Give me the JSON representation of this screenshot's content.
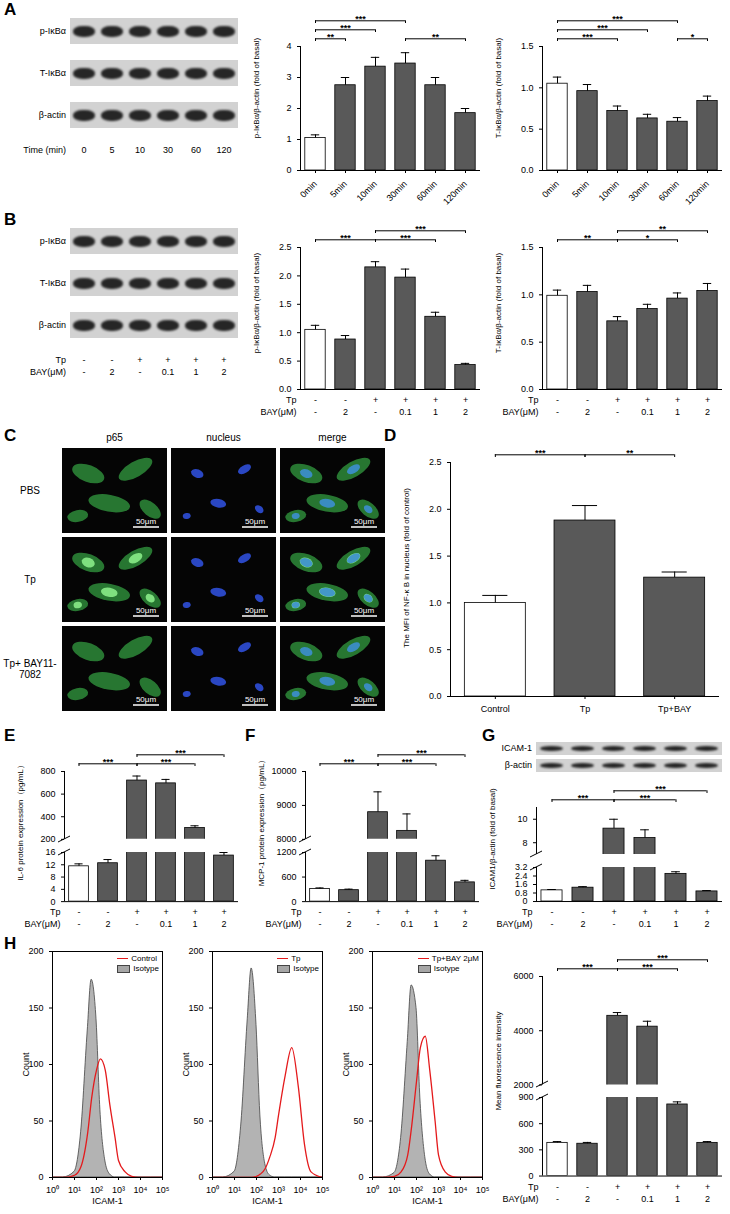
{
  "panel_labels": [
    "A",
    "B",
    "C",
    "D",
    "E",
    "F",
    "G",
    "H"
  ],
  "blots": [
    {
      "rows": [
        "p-IκBα",
        "T-IκBα",
        "β-actin"
      ],
      "lane_table": [
        {
          "label": "Time (min)",
          "values": [
            "0",
            "5",
            "10",
            "30",
            "60",
            "120"
          ]
        }
      ]
    },
    {
      "rows": [
        "p-IκBα",
        "T-IκBα",
        "β-actin"
      ],
      "lane_table": [
        {
          "label": "Tp",
          "values": [
            "-",
            "-",
            "+",
            "+",
            "+",
            "+"
          ]
        },
        {
          "label": "BAY(μM)",
          "values": [
            "-",
            "2",
            "-",
            "0.1",
            "1",
            "2"
          ]
        }
      ]
    }
  ],
  "micrographs": {
    "columns": [
      "p65",
      "nucleus",
      "merge"
    ],
    "rows": [
      "PBS",
      "Tp",
      "Tp+ BAY11-7082"
    ],
    "scale_bar": "50μm"
  },
  "chart_data": [
    {
      "type": "bar",
      "ylabel": "p-IκBα/β-actin (fold of basal)",
      "categories": [
        "0min",
        "5min",
        "10min",
        "30min",
        "60min",
        "120min"
      ],
      "values": [
        1.05,
        2.75,
        3.35,
        3.45,
        2.75,
        1.85
      ],
      "errors": [
        0.1,
        0.25,
        0.3,
        0.35,
        0.25,
        0.15
      ],
      "colors": [
        "#ffffff",
        "#595959",
        "#595959",
        "#595959",
        "#595959",
        "#595959"
      ],
      "ylim": [
        0,
        4
      ],
      "yticks": [
        0,
        1,
        2,
        3,
        4
      ],
      "significance": [
        {
          "from": 0,
          "to": 1,
          "label": "**"
        },
        {
          "from": 0,
          "to": 2,
          "label": "***"
        },
        {
          "from": 0,
          "to": 3,
          "label": "***"
        },
        {
          "from": 3,
          "to": 5,
          "label": "**"
        }
      ]
    },
    {
      "type": "bar",
      "ylabel": "T-IκBα/β-actin (fold of basal)",
      "categories": [
        "0min",
        "5min",
        "10min",
        "30min",
        "60min",
        "120min"
      ],
      "values": [
        1.05,
        0.96,
        0.72,
        0.63,
        0.59,
        0.84
      ],
      "errors": [
        0.08,
        0.08,
        0.06,
        0.05,
        0.05,
        0.06
      ],
      "colors": [
        "#ffffff",
        "#595959",
        "#595959",
        "#595959",
        "#595959",
        "#595959"
      ],
      "ylim": [
        0,
        1.5
      ],
      "yticks": [
        {
          "value": 0,
          "label": "0.0"
        },
        0.5,
        {
          "value": 1,
          "label": "1.0"
        },
        1.5
      ],
      "significance": [
        {
          "from": 0,
          "to": 2,
          "label": "***"
        },
        {
          "from": 0,
          "to": 3,
          "label": "***"
        },
        {
          "from": 0,
          "to": 4,
          "label": "***"
        },
        {
          "from": 4,
          "to": 5,
          "label": "*"
        }
      ]
    },
    {
      "type": "bar",
      "ylabel": "p-IκBα/β-actin (fold of basal)",
      "categories": [
        null,
        null,
        null,
        null,
        null,
        null
      ],
      "x_table": [
        {
          "label": "Tp",
          "values": [
            "-",
            "-",
            "+",
            "+",
            "+",
            "+"
          ]
        },
        {
          "label": "BAY(μM)",
          "values": [
            "-",
            "2",
            "-",
            "0.1",
            "1",
            "2"
          ]
        }
      ],
      "values": [
        1.05,
        0.88,
        2.15,
        1.97,
        1.28,
        0.43
      ],
      "errors": [
        0.08,
        0.07,
        0.1,
        0.15,
        0.08,
        0.03
      ],
      "colors": [
        "#ffffff",
        "#595959",
        "#595959",
        "#595959",
        "#595959",
        "#595959"
      ],
      "ylim": [
        0,
        2.5
      ],
      "yticks": [
        {
          "value": 0,
          "label": "0.0"
        },
        0.5,
        {
          "value": 1,
          "label": "1.0"
        },
        1.5,
        {
          "value": 2,
          "label": "2.0"
        },
        2.5
      ],
      "significance": [
        {
          "from": 0,
          "to": 2,
          "label": "***"
        },
        {
          "from": 2,
          "to": 4,
          "label": "***"
        },
        {
          "from": 2,
          "to": 5,
          "label": "***"
        }
      ]
    },
    {
      "type": "bar",
      "ylabel": "T-IκBα/β-actin (fold of basal)",
      "categories": [
        null,
        null,
        null,
        null,
        null,
        null
      ],
      "x_table": [
        {
          "label": "Tp",
          "values": [
            "-",
            "-",
            "+",
            "+",
            "+",
            "+"
          ]
        },
        {
          "label": "BAY(μM)",
          "values": [
            "-",
            "2",
            "-",
            "0.1",
            "1",
            "2"
          ]
        }
      ],
      "values": [
        0.99,
        1.03,
        0.72,
        0.85,
        0.96,
        1.04
      ],
      "errors": [
        0.06,
        0.07,
        0.05,
        0.05,
        0.06,
        0.08
      ],
      "colors": [
        "#ffffff",
        "#595959",
        "#595959",
        "#595959",
        "#595959",
        "#595959"
      ],
      "ylim": [
        0,
        1.5
      ],
      "yticks": [
        {
          "value": 0,
          "label": "0.0"
        },
        0.5,
        {
          "value": 1,
          "label": "1.0"
        },
        1.5
      ],
      "significance": [
        {
          "from": 0,
          "to": 2,
          "label": "**"
        },
        {
          "from": 2,
          "to": 4,
          "label": "*"
        },
        {
          "from": 2,
          "to": 5,
          "label": "**"
        }
      ]
    },
    {
      "type": "bar",
      "ylabel": "The MFI of NF-κ B in nucleus (fold of control)",
      "categories": [
        "Control",
        "Tp",
        "Tp+BAY"
      ],
      "values": [
        1,
        1.88,
        1.27
      ],
      "errors": [
        0.08,
        0.16,
        0.06
      ],
      "colors": [
        "#ffffff",
        "#595959",
        "#595959"
      ],
      "ylim": [
        0,
        2.5
      ],
      "yticks": [
        {
          "value": 0,
          "label": "0.0"
        },
        0.5,
        {
          "value": 1,
          "label": "1.0"
        },
        1.5,
        {
          "value": 2,
          "label": "2.0"
        },
        2.5
      ],
      "significance": [
        {
          "from": 0,
          "to": 1,
          "label": "***"
        },
        {
          "from": 1,
          "to": 2,
          "label": "**"
        }
      ]
    },
    {
      "type": "bar",
      "ylabel": "IL-6 protein expression（pg/mL）",
      "categories": [
        null,
        null,
        null,
        null,
        null,
        null
      ],
      "x_table": [
        {
          "label": "Tp",
          "values": [
            "-",
            "-",
            "+",
            "+",
            "+",
            "+"
          ]
        },
        {
          "label": "BAY(μM)",
          "values": [
            "-",
            "2",
            "-",
            "0.1",
            "1",
            "2"
          ]
        }
      ],
      "values": [
        11.5,
        12.5,
        720,
        695,
        300,
        15
      ],
      "errors": [
        0.8,
        1.2,
        40,
        35,
        20,
        1
      ],
      "colors": [
        "#ffffff",
        "#595959",
        "#595959",
        "#595959",
        "#595959",
        "#595959"
      ],
      "y_segments": [
        {
          "ylim": [
            0,
            16
          ],
          "yticks": [
            0,
            4,
            8,
            12,
            16
          ]
        },
        {
          "ylim": [
            200,
            800
          ],
          "yticks": [
            200,
            400,
            600,
            800
          ]
        }
      ],
      "significance": [
        {
          "from": 0,
          "to": 2,
          "label": "***"
        },
        {
          "from": 2,
          "to": 4,
          "label": "***"
        },
        {
          "from": 2,
          "to": 5,
          "label": "***"
        }
      ]
    },
    {
      "type": "bar",
      "ylabel": "MCP-1 protein expression（pg/mL）",
      "categories": [
        null,
        null,
        null,
        null,
        null,
        null
      ],
      "x_table": [
        {
          "label": "Tp",
          "values": [
            "-",
            "-",
            "+",
            "+",
            "+",
            "+"
          ]
        },
        {
          "label": "BAY(μM)",
          "values": [
            "-",
            "2",
            "-",
            "0.1",
            "1",
            "2"
          ]
        }
      ],
      "values": [
        310,
        280,
        8800,
        8250,
        1000,
        470
      ],
      "errors": [
        25,
        25,
        600,
        500,
        120,
        50
      ],
      "colors": [
        "#ffffff",
        "#595959",
        "#595959",
        "#595959",
        "#595959",
        "#595959"
      ],
      "y_segments": [
        {
          "ylim": [
            0,
            1200
          ],
          "yticks": [
            0,
            600,
            1200
          ]
        },
        {
          "ylim": [
            8000,
            10000
          ],
          "yticks": [
            8000,
            9000,
            10000
          ]
        }
      ],
      "significance": [
        {
          "from": 0,
          "to": 2,
          "label": "***"
        },
        {
          "from": 2,
          "to": 4,
          "label": "***"
        },
        {
          "from": 2,
          "to": 5,
          "label": "***"
        }
      ]
    },
    {
      "type": "bar",
      "ylabel": "ICAM1/β-actin (fold of basal)",
      "blot": {
        "rows": [
          "ICAM-1",
          "β-actin"
        ]
      },
      "categories": [
        null,
        null,
        null,
        null,
        null,
        null
      ],
      "x_table": [
        {
          "label": "Tp",
          "values": [
            "-",
            "-",
            "+",
            "+",
            "+",
            "+"
          ]
        },
        {
          "label": "BAY(μM)",
          "values": [
            "-",
            "2",
            "-",
            "0.1",
            "1",
            "2"
          ]
        }
      ],
      "values": [
        1.05,
        1.3,
        9.2,
        8.4,
        2.6,
        0.95
      ],
      "errors": [
        0.08,
        0.1,
        0.8,
        0.7,
        0.2,
        0.08
      ],
      "colors": [
        "#ffffff",
        "#595959",
        "#595959",
        "#595959",
        "#595959",
        "#595959"
      ],
      "y_segments": [
        {
          "ylim": [
            0,
            3.2
          ],
          "yticks": [
            0,
            0.8,
            1.6,
            2.4,
            3.2
          ]
        },
        {
          "ylim": [
            7,
            11
          ],
          "yticks": [
            8,
            10
          ]
        }
      ],
      "significance": [
        {
          "from": 0,
          "to": 2,
          "label": "***"
        },
        {
          "from": 2,
          "to": 4,
          "label": "***"
        },
        {
          "from": 2,
          "to": 5,
          "label": "***"
        }
      ]
    },
    {
      "type": "area",
      "log": "x",
      "xlabel": "ICAM-1",
      "ylabel": "Count",
      "x": [
        1,
        3,
        10,
        20,
        40,
        60,
        100,
        150,
        250,
        400,
        700,
        1000,
        2000,
        4000,
        8000,
        15000,
        30000,
        100000
      ],
      "xlim": [
        1,
        100000
      ],
      "xticks": [
        {
          "value": 1,
          "label": "10⁰"
        },
        {
          "value": 10,
          "label": "10¹"
        },
        {
          "value": 100,
          "label": "10²"
        },
        {
          "value": 1000,
          "label": "10³"
        },
        {
          "value": 10000,
          "label": "10⁴"
        },
        {
          "value": 100000,
          "label": "10⁵"
        }
      ],
      "ylim": [
        0,
        200
      ],
      "yticks": [
        0,
        50,
        100,
        150,
        200
      ],
      "legend": "upper-right",
      "series": [
        {
          "name": "Control",
          "type": "line",
          "color": "#e41a1c",
          "values": [
            0,
            0,
            2,
            10,
            40,
            70,
            95,
            105,
            95,
            65,
            35,
            15,
            5,
            1,
            0,
            0,
            0,
            0
          ]
        },
        {
          "name": "Isotype",
          "type": "area",
          "color": "#a6a6a6",
          "values": [
            0,
            0,
            5,
            40,
            130,
            175,
            140,
            60,
            15,
            3,
            0,
            0,
            0,
            0,
            0,
            0,
            0,
            0
          ]
        }
      ]
    },
    {
      "type": "area",
      "log": "x",
      "xlabel": "ICAM-1",
      "ylabel": "Count",
      "x": [
        1,
        3,
        10,
        20,
        40,
        60,
        100,
        150,
        250,
        400,
        700,
        1000,
        2000,
        4000,
        8000,
        15000,
        30000,
        100000
      ],
      "xlim": [
        1,
        100000
      ],
      "xticks": [
        {
          "value": 1,
          "label": "10⁰"
        },
        {
          "value": 10,
          "label": "10¹"
        },
        {
          "value": 100,
          "label": "10²"
        },
        {
          "value": 1000,
          "label": "10³"
        },
        {
          "value": 10000,
          "label": "10⁴"
        },
        {
          "value": 100000,
          "label": "10⁵"
        }
      ],
      "ylim": [
        0,
        200
      ],
      "yticks": [
        0,
        50,
        100,
        150,
        200
      ],
      "legend": "upper-right",
      "series": [
        {
          "name": "Tp",
          "type": "line",
          "color": "#e41a1c",
          "values": [
            0,
            0,
            0,
            0,
            0,
            0,
            1,
            3,
            8,
            18,
            35,
            55,
            90,
            115,
            80,
            30,
            5,
            0
          ]
        },
        {
          "name": "Isotype",
          "type": "area",
          "color": "#a6a6a6",
          "values": [
            0,
            0,
            5,
            45,
            140,
            185,
            135,
            55,
            12,
            2,
            0,
            0,
            0,
            0,
            0,
            0,
            0,
            0
          ]
        }
      ]
    },
    {
      "type": "area",
      "log": "x",
      "xlabel": "ICAM-1",
      "ylabel": "Count",
      "x": [
        1,
        3,
        10,
        20,
        40,
        60,
        100,
        150,
        250,
        400,
        700,
        1000,
        2000,
        4000,
        8000,
        15000,
        30000,
        100000
      ],
      "xlim": [
        1,
        100000
      ],
      "xticks": [
        {
          "value": 1,
          "label": "10⁰"
        },
        {
          "value": 10,
          "label": "10¹"
        },
        {
          "value": 100,
          "label": "10²"
        },
        {
          "value": 1000,
          "label": "10³"
        },
        {
          "value": 10000,
          "label": "10⁴"
        },
        {
          "value": 100000,
          "label": "10⁵"
        }
      ],
      "ylim": [
        0,
        200
      ],
      "yticks": [
        0,
        50,
        100,
        150,
        200
      ],
      "legend": "upper-right",
      "series": [
        {
          "name": "Tp+BAY 2μM",
          "type": "line",
          "color": "#e41a1c",
          "values": [
            0,
            0,
            1,
            5,
            20,
            45,
            85,
            115,
            125,
            95,
            50,
            20,
            5,
            1,
            0,
            0,
            0,
            0
          ]
        },
        {
          "name": "Isotype",
          "type": "area",
          "color": "#a6a6a6",
          "values": [
            0,
            0,
            4,
            35,
            120,
            170,
            150,
            70,
            18,
            3,
            0,
            0,
            0,
            0,
            0,
            0,
            0,
            0
          ]
        }
      ]
    },
    {
      "type": "bar",
      "ylabel": "Mean fluorescence intensity",
      "categories": [
        null,
        null,
        null,
        null,
        null,
        null
      ],
      "x_table": [
        {
          "label": "Tp",
          "values": [
            "-",
            "-",
            "+",
            "+",
            "+",
            "+"
          ]
        },
        {
          "label": "BAY(μM)",
          "values": [
            "-",
            "2",
            "-",
            "0.1",
            "1",
            "2"
          ]
        }
      ],
      "values": [
        380,
        370,
        4550,
        4150,
        820,
        380
      ],
      "errors": [
        15,
        15,
        120,
        200,
        30,
        15
      ],
      "colors": [
        "#ffffff",
        "#595959",
        "#595959",
        "#595959",
        "#595959",
        "#595959"
      ],
      "y_segments": [
        {
          "ylim": [
            0,
            900
          ],
          "yticks": [
            0,
            300,
            600,
            900
          ]
        },
        {
          "ylim": [
            2000,
            6000
          ],
          "yticks": [
            2000,
            4000,
            6000
          ]
        }
      ],
      "significance": [
        {
          "from": 0,
          "to": 2,
          "label": "***"
        },
        {
          "from": 2,
          "to": 4,
          "label": "***"
        },
        {
          "from": 2,
          "to": 5,
          "label": "***"
        }
      ]
    }
  ]
}
